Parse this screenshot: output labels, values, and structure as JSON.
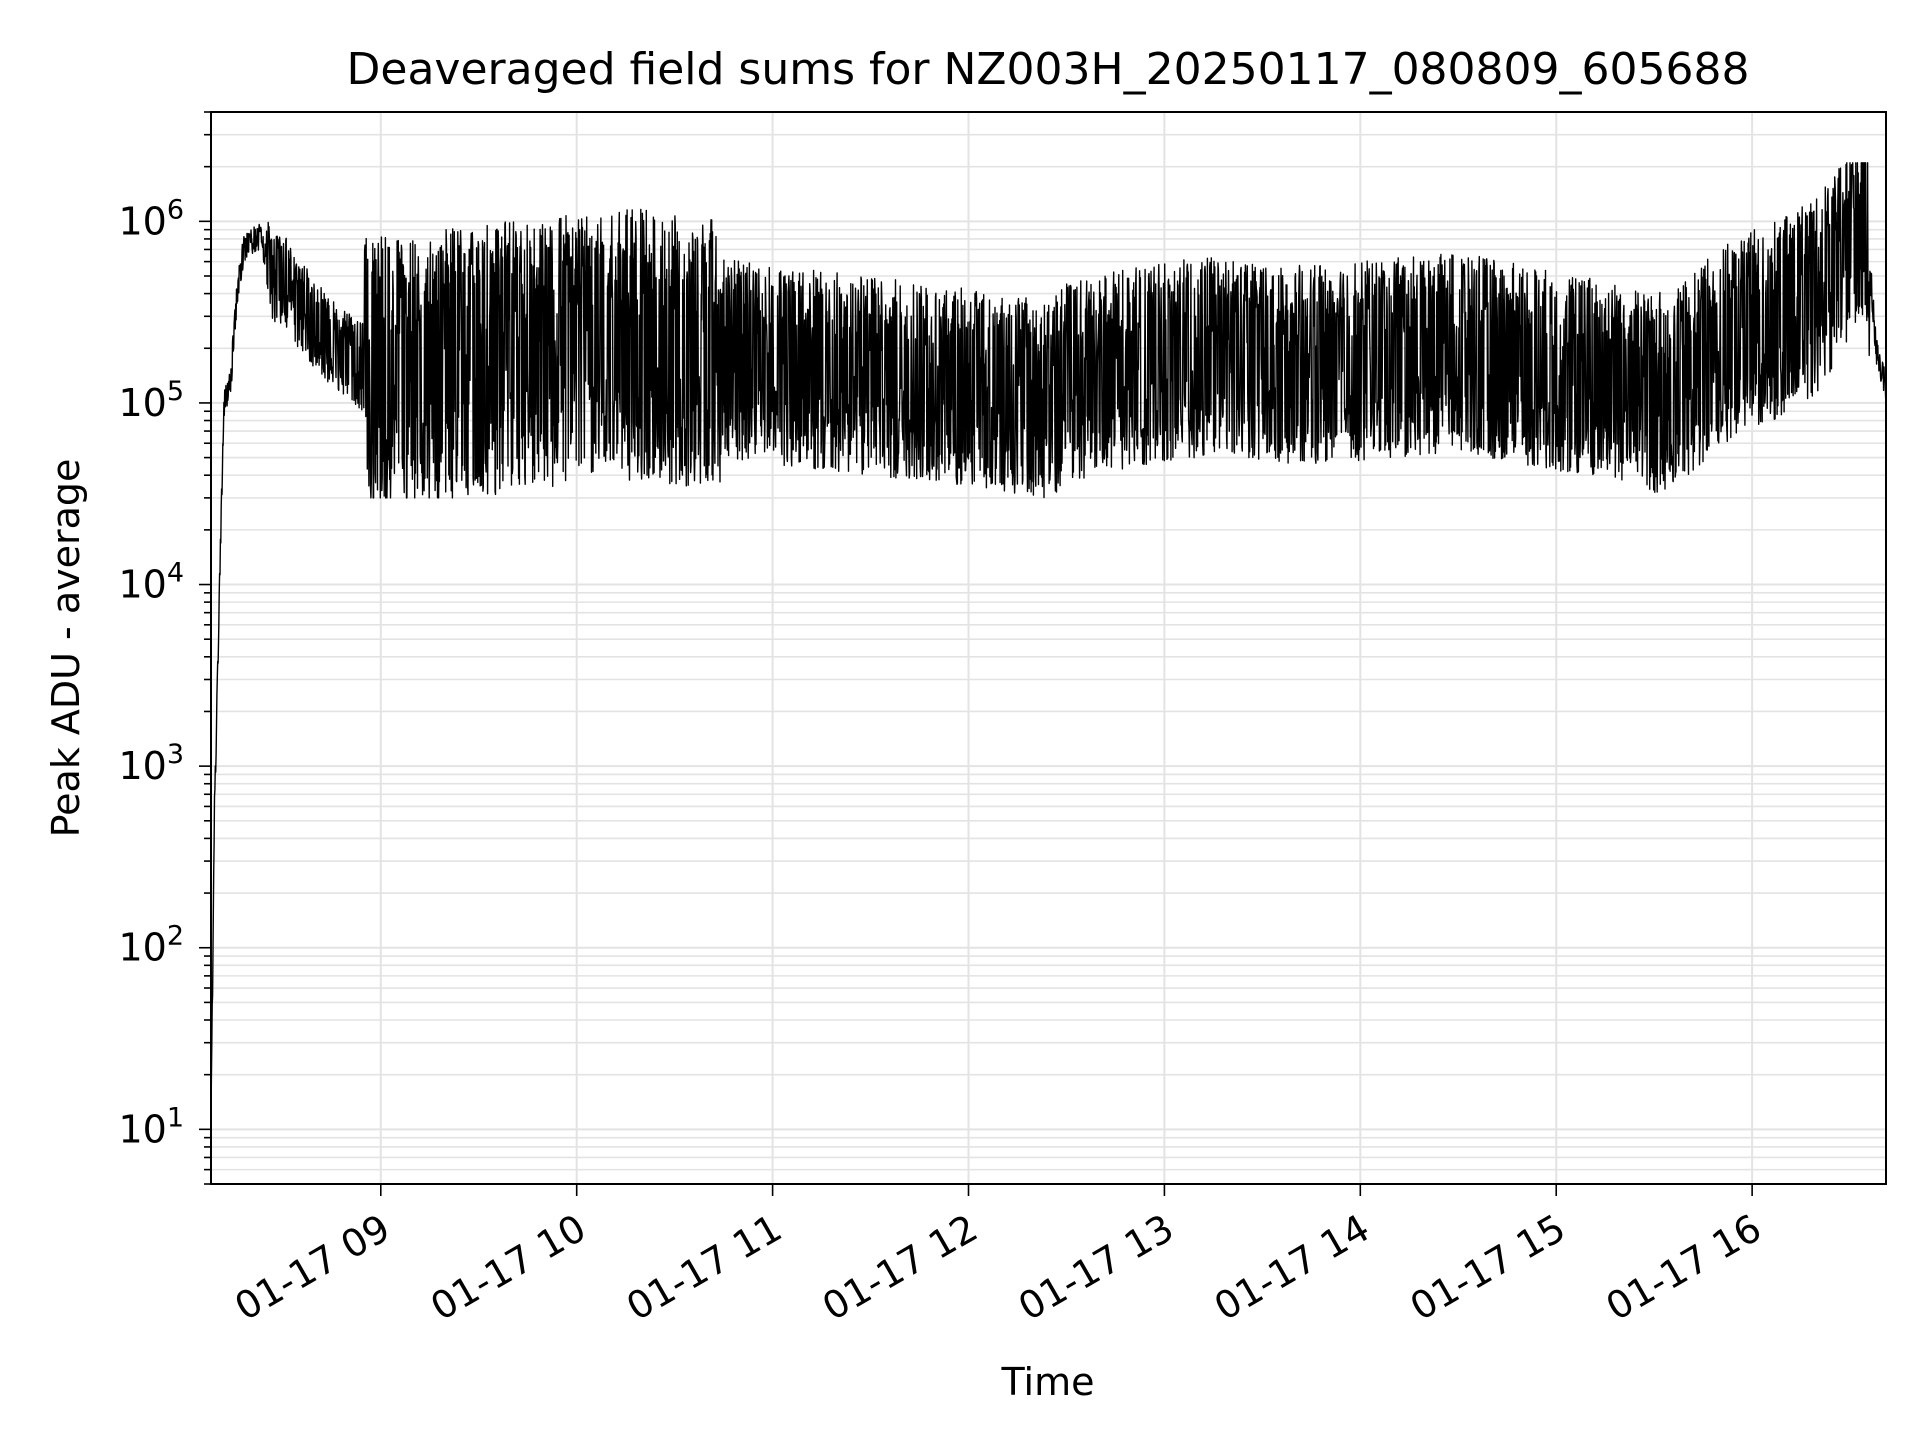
{
  "chart_data": {
    "type": "line",
    "title": "Deaveraged field sums for NZ003H_20250117_080809_605688",
    "xlabel": "Time",
    "ylabel": "Peak ADU - average",
    "yscale": "log",
    "ylim": [
      5,
      4000000
    ],
    "xlim": [
      "01-17 08:08",
      "01-17 16:41"
    ],
    "grid": "on (major and minor)",
    "legend": "none",
    "line_color": "#000000",
    "x_ticks": [
      "01-17 09",
      "01-17 10",
      "01-17 11",
      "01-17 12",
      "01-17 13",
      "01-17 14",
      "01-17 15",
      "01-17 16"
    ],
    "y_ticks": [
      {
        "base": "10",
        "exp": "1",
        "value": 10
      },
      {
        "base": "10",
        "exp": "2",
        "value": 100
      },
      {
        "base": "10",
        "exp": "3",
        "value": 1000
      },
      {
        "base": "10",
        "exp": "4",
        "value": 10000
      },
      {
        "base": "10",
        "exp": "5",
        "value": 100000
      },
      {
        "base": "10",
        "exp": "6",
        "value": 1000000
      }
    ],
    "series": [
      {
        "x": [
          "01-17 08:08",
          "01-17 08:09",
          "01-17 08:10",
          "01-17 08:11",
          "01-17 08:12",
          "01-17 08:14",
          "01-17 08:16",
          "01-17 08:18",
          "01-17 08:20",
          "01-17 08:23",
          "01-17 08:25",
          "01-17 08:27",
          "01-17 08:30",
          "01-17 08:33",
          "01-17 08:35",
          "01-17 08:38",
          "01-17 08:42",
          "01-17 08:46",
          "01-17 08:50",
          "01-17 08:54",
          "01-17 08:58",
          "01-17 09:05",
          "01-17 09:12",
          "01-17 09:20",
          "01-17 09:30",
          "01-17 09:40",
          "01-17 09:50",
          "01-17 10:00",
          "01-17 10:15",
          "01-17 10:30",
          "01-17 10:45",
          "01-17 11:00",
          "01-17 11:15",
          "01-17 11:30",
          "01-17 11:45",
          "01-17 12:00",
          "01-17 12:15",
          "01-17 12:25",
          "01-17 12:30",
          "01-17 12:45",
          "01-17 13:00",
          "01-17 13:15",
          "01-17 13:30",
          "01-17 13:45",
          "01-17 14:00",
          "01-17 14:15",
          "01-17 14:30",
          "01-17 14:45",
          "01-17 15:00",
          "01-17 15:10",
          "01-17 15:20",
          "01-17 15:30",
          "01-17 15:40",
          "01-17 15:50",
          "01-17 16:00",
          "01-17 16:10",
          "01-17 16:20",
          "01-17 16:30",
          "01-17 16:35",
          "01-17 16:38",
          "01-17 16:41"
        ],
        "y": [
          10,
          500,
          3000,
          20000,
          100000,
          130000,
          400000,
          700000,
          800000,
          800000,
          600000,
          450000,
          500000,
          400000,
          350000,
          300000,
          250000,
          200000,
          180000,
          160000,
          150000,
          140000,
          150000,
          160000,
          170000,
          180000,
          190000,
          200000,
          210000,
          200000,
          180000,
          160000,
          150000,
          140000,
          130000,
          120000,
          110000,
          100000,
          130000,
          150000,
          170000,
          180000,
          170000,
          160000,
          170000,
          180000,
          190000,
          170000,
          150000,
          140000,
          130000,
          110000,
          140000,
          200000,
          250000,
          300000,
          400000,
          800000,
          1000000,
          200000,
          120000
        ],
        "fluctuation_band": {
          "low": 30000,
          "high": 2100000
        }
      }
    ]
  }
}
